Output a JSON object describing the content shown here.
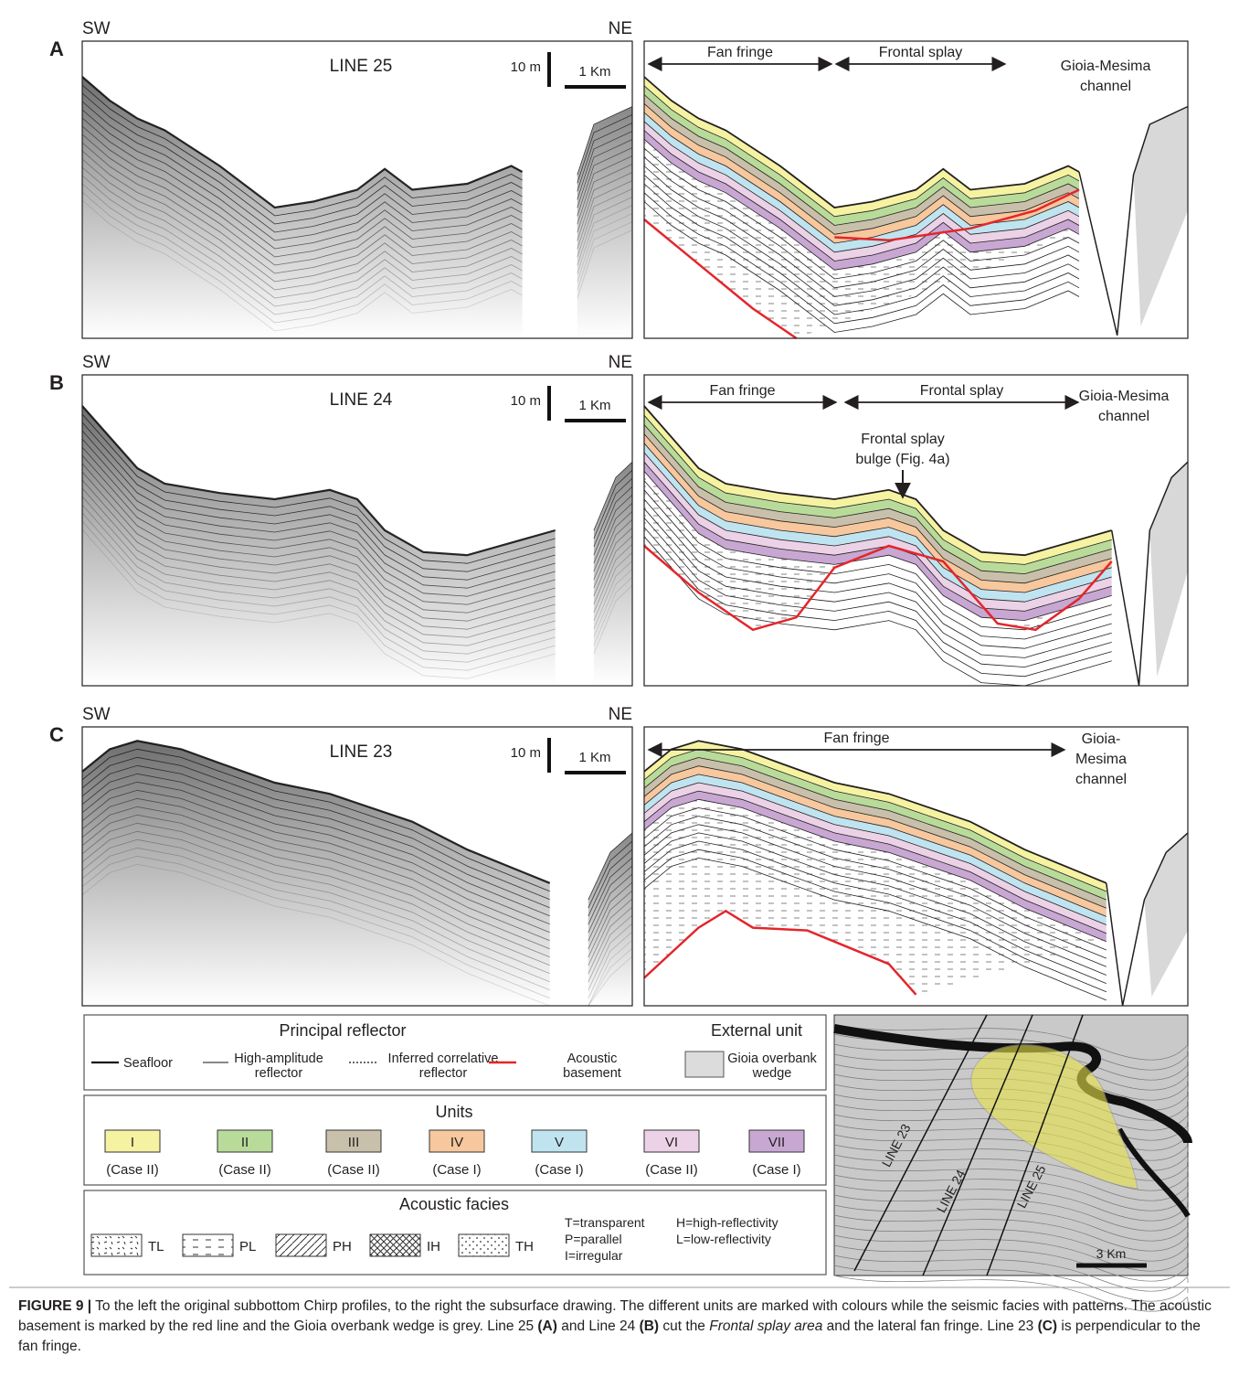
{
  "panels": [
    {
      "letter": "A",
      "left_end": "SW",
      "right_end": "NE",
      "line": "LINE 25",
      "vertical_scale": "10 m",
      "horizontal_scale": "1 Km",
      "arrows": [
        "Fan fringe",
        "Frontal splay"
      ],
      "channel_label": [
        "Gioia-Mesima",
        "channel"
      ]
    },
    {
      "letter": "B",
      "left_end": "SW",
      "right_end": "NE",
      "line": "LINE 24",
      "vertical_scale": "10 m",
      "horizontal_scale": "1 Km",
      "arrows": [
        "Fan fringe",
        "Frontal splay"
      ],
      "channel_label": [
        "Gioia-Mesima",
        "channel"
      ],
      "bulge_label": [
        "Frontal splay",
        "bulge (Fig. 4a)"
      ]
    },
    {
      "letter": "C",
      "left_end": "SW",
      "right_end": "NE",
      "line": "LINE 23",
      "vertical_scale": "10 m",
      "horizontal_scale": "1 Km",
      "arrows": [
        "Fan fringe"
      ],
      "channel_label": [
        "Gioia-",
        "Mesima",
        "channel"
      ]
    }
  ],
  "legend": {
    "reflector": {
      "title": "Principal reflector",
      "items": [
        [
          "Seafloor"
        ],
        [
          "High-amplitude",
          "reflector"
        ],
        [
          "Inferred correlative",
          "reflector"
        ],
        [
          "Acoustic",
          "basement"
        ]
      ]
    },
    "external": {
      "title": "External unit",
      "item": [
        "Gioia overbank",
        "wedge"
      ]
    },
    "units": {
      "title": "Units",
      "items": [
        {
          "numeral": "I",
          "case": "(Case II)",
          "color": "#f5f2a2"
        },
        {
          "numeral": "II",
          "case": "(Case II)",
          "color": "#b8db9a"
        },
        {
          "numeral": "III",
          "case": "(Case II)",
          "color": "#c8c0ab"
        },
        {
          "numeral": "IV",
          "case": "(Case I)",
          "color": "#f7c79d"
        },
        {
          "numeral": "V",
          "case": "(Case I)",
          "color": "#bfe4f0"
        },
        {
          "numeral": "VI",
          "case": "(Case II)",
          "color": "#ecd2e6"
        },
        {
          "numeral": "VII",
          "case": "(Case I)",
          "color": "#c8a7d3"
        }
      ]
    },
    "facies": {
      "title": "Acoustic facies",
      "items": [
        "TL",
        "PL",
        "PH",
        "IH",
        "TH"
      ],
      "definitions": [
        [
          "T=transparent",
          "P=parallel",
          "I=irregular"
        ],
        [
          "H=high-reflectivity",
          "L=low-reflectivity"
        ]
      ]
    }
  },
  "map": {
    "lines": [
      "LINE 23",
      "LINE 24",
      "LINE 25"
    ],
    "scale": "3 Km"
  },
  "caption": [
    {
      "text": "FIGURE 9 |",
      "style": "bold"
    },
    {
      "text": " To the left the original subbottom Chirp profiles, to the right the subsurface drawing. The different units are marked with colours while the seismic facies with patterns. The acoustic basement is marked by the red line and the Gioia overbank wedge is grey. Line 25 ",
      "style": "normal"
    },
    {
      "text": "(A)",
      "style": "bold"
    },
    {
      "text": " and Line 24 ",
      "style": "normal"
    },
    {
      "text": "(B)",
      "style": "bold"
    },
    {
      "text": " cut the ",
      "style": "normal"
    },
    {
      "text": "Frontal splay area",
      "style": "italic"
    },
    {
      "text": " and the lateral fan fringe. Line 23 ",
      "style": "normal"
    },
    {
      "text": "(C)",
      "style": "bold"
    },
    {
      "text": " is perpendicular to the fan fringe.",
      "style": "normal"
    }
  ]
}
